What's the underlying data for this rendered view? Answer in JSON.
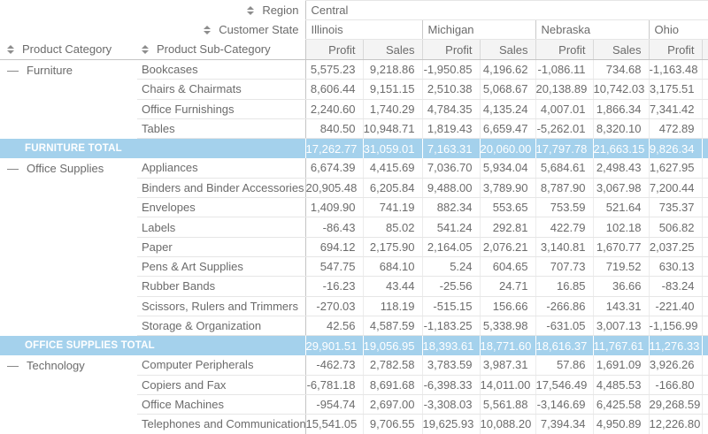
{
  "colors": {
    "total_row_bg": "#a4d1ec",
    "total_row_text": "#ffffff",
    "text": "#6b6b6b",
    "measure_header_bg": "#f4f4f4",
    "main_border": "#c5c5c5"
  },
  "icons": {
    "sorter": "sort-updown-icon",
    "collapse": "collapse-minus-icon"
  },
  "pivot": {
    "region": {
      "label": "Region",
      "value": "Central"
    },
    "customer_state": {
      "label": "Customer State"
    },
    "states": [
      "Illinois",
      "Michigan",
      "Nebraska",
      "Ohio"
    ],
    "measures": [
      "Profit",
      "Sales"
    ],
    "row_headers": {
      "category": "Product Category",
      "subcategory": "Product Sub-Category"
    },
    "groups": [
      {
        "category": "Furniture",
        "rows": [
          {
            "label": "Bookcases",
            "values": [
              "5,575.23",
              "9,218.86",
              "-1,950.85",
              "4,196.62",
              "-1,086.11",
              "734.68",
              "-1,163.48"
            ]
          },
          {
            "label": "Chairs & Chairmats",
            "values": [
              "8,606.44",
              "9,151.15",
              "2,510.38",
              "5,068.67",
              "20,138.89",
              "10,742.03",
              "3,175.51"
            ]
          },
          {
            "label": "Office Furnishings",
            "values": [
              "2,240.60",
              "1,740.29",
              "4,784.35",
              "4,135.24",
              "4,007.01",
              "1,866.34",
              "7,341.42"
            ]
          },
          {
            "label": "Tables",
            "values": [
              "840.50",
              "10,948.71",
              "1,819.43",
              "6,659.47",
              "-5,262.01",
              "8,320.10",
              "472.89"
            ]
          }
        ],
        "total": {
          "label": "FURNITURE TOTAL",
          "values": [
            "17,262.77",
            "31,059.01",
            "7,163.31",
            "20,060.00",
            "17,797.78",
            "21,663.15",
            "9,826.34"
          ]
        }
      },
      {
        "category": "Office Supplies",
        "rows": [
          {
            "label": "Appliances",
            "values": [
              "6,674.39",
              "4,415.69",
              "7,036.70",
              "5,934.04",
              "5,684.61",
              "2,498.43",
              "1,627.95"
            ]
          },
          {
            "label": "Binders and Binder Accessories",
            "values": [
              "20,905.48",
              "6,205.84",
              "9,488.00",
              "3,789.90",
              "8,787.90",
              "3,067.98",
              "7,200.44"
            ]
          },
          {
            "label": "Envelopes",
            "values": [
              "1,409.90",
              "741.19",
              "882.34",
              "553.65",
              "753.59",
              "521.64",
              "735.37"
            ]
          },
          {
            "label": "Labels",
            "values": [
              "-86.43",
              "85.02",
              "541.24",
              "292.81",
              "422.79",
              "102.18",
              "506.82"
            ]
          },
          {
            "label": "Paper",
            "values": [
              "694.12",
              "2,175.90",
              "2,164.05",
              "2,076.21",
              "3,140.81",
              "1,670.77",
              "2,037.25"
            ]
          },
          {
            "label": "Pens & Art Supplies",
            "values": [
              "547.75",
              "684.10",
              "5.24",
              "604.65",
              "707.73",
              "719.52",
              "630.13"
            ]
          },
          {
            "label": "Rubber Bands",
            "values": [
              "-16.23",
              "43.44",
              "-25.56",
              "24.71",
              "16.85",
              "36.66",
              "-83.24"
            ]
          },
          {
            "label": "Scissors, Rulers and Trimmers",
            "values": [
              "-270.03",
              "118.19",
              "-515.15",
              "156.66",
              "-266.86",
              "143.31",
              "-221.40"
            ]
          },
          {
            "label": "Storage & Organization",
            "values": [
              "42.56",
              "4,587.59",
              "-1,183.25",
              "5,338.98",
              "-631.05",
              "3,007.13",
              "-1,156.99"
            ]
          }
        ],
        "total": {
          "label": "OFFICE SUPPLIES TOTAL",
          "values": [
            "29,901.51",
            "19,056.95",
            "18,393.61",
            "18,771.60",
            "18,616.37",
            "11,767.61",
            "11,276.33"
          ]
        }
      },
      {
        "category": "Technology",
        "rows": [
          {
            "label": "Computer Peripherals",
            "values": [
              "-462.73",
              "2,782.58",
              "3,783.59",
              "3,987.31",
              "57.86",
              "1,691.09",
              "3,926.26"
            ]
          },
          {
            "label": "Copiers and Fax",
            "values": [
              "-6,781.18",
              "8,691.68",
              "-6,398.33",
              "14,011.00",
              "17,546.49",
              "4,485.53",
              "-166.80"
            ]
          },
          {
            "label": "Office Machines",
            "values": [
              "-954.74",
              "2,697.00",
              "-3,308.03",
              "5,561.88",
              "-3,146.69",
              "6,425.58",
              "29,268.59"
            ]
          },
          {
            "label": "Telephones and Communication",
            "values": [
              "15,541.05",
              "9,706.55",
              "19,625.93",
              "10,088.20",
              "7,394.34",
              "4,950.89",
              "12,226.80"
            ]
          }
        ],
        "total": null
      }
    ]
  }
}
